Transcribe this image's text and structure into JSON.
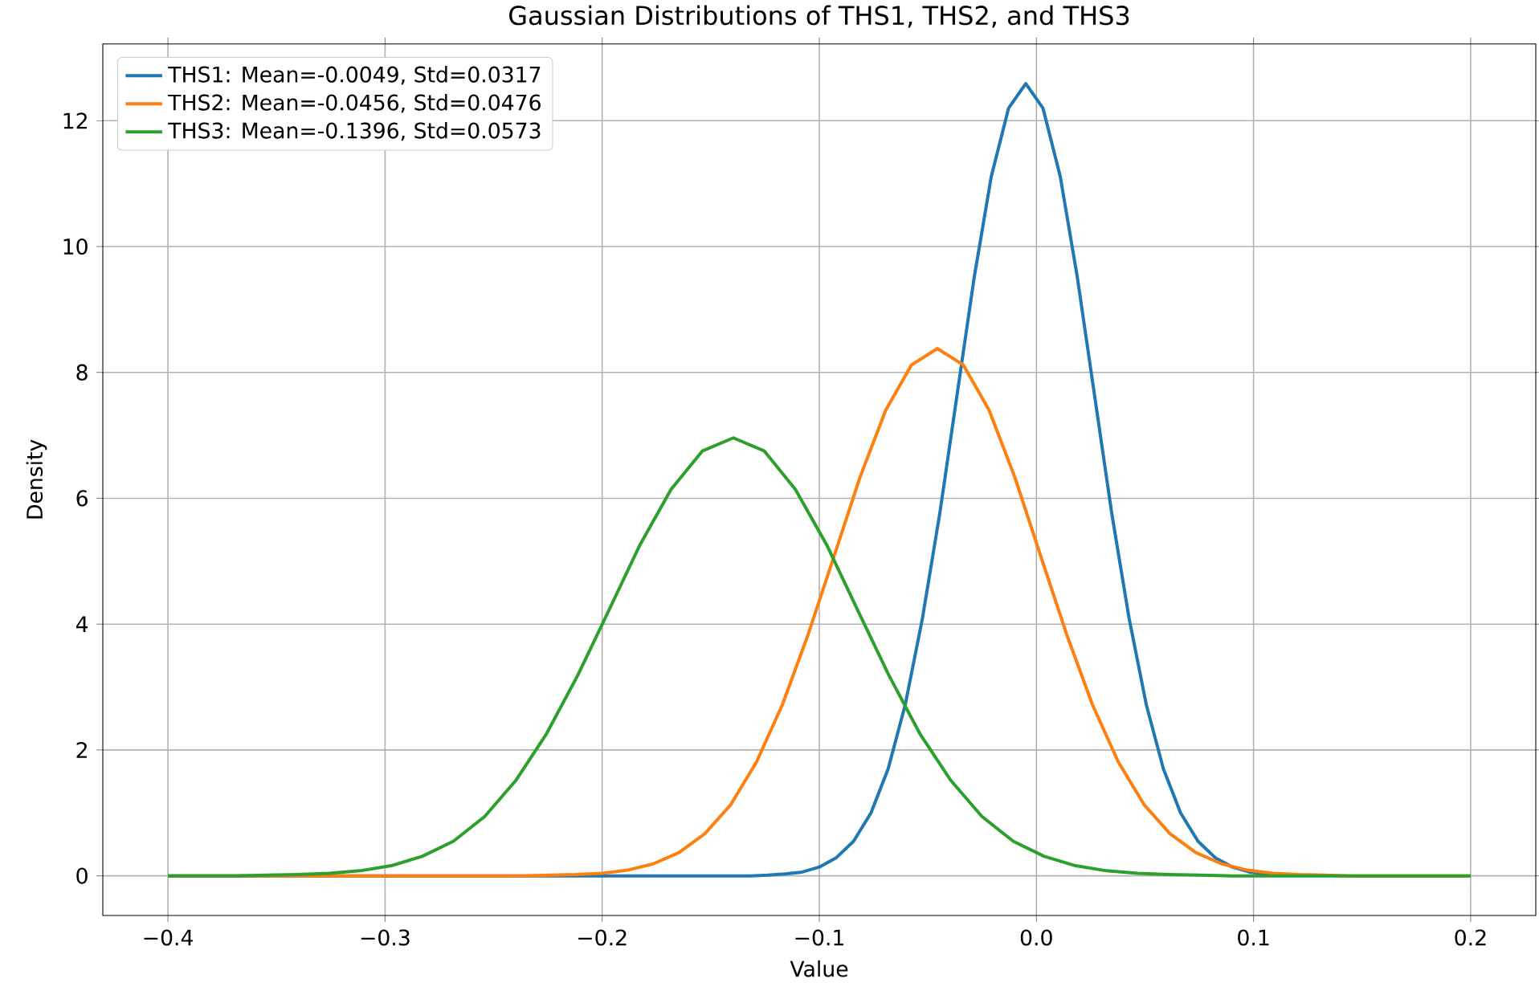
{
  "chart_data": {
    "type": "line",
    "title": "Gaussian Distributions of THS1, THS2, and THS3",
    "xlabel": "Value",
    "ylabel": "Density",
    "xlim": [
      -0.43,
      0.23
    ],
    "ylim": [
      -0.63,
      13.22
    ],
    "xticks": [
      {
        "value": -0.4,
        "label": "−0.4"
      },
      {
        "value": -0.3,
        "label": "−0.3"
      },
      {
        "value": -0.2,
        "label": "−0.2"
      },
      {
        "value": -0.1,
        "label": "−0.1"
      },
      {
        "value": 0,
        "label": "0.0"
      },
      {
        "value": 0.1,
        "label": "0.1"
      },
      {
        "value": 0.2,
        "label": "0.2"
      }
    ],
    "yticks": [
      0,
      2,
      4,
      6,
      8,
      10,
      12
    ],
    "grid": true,
    "legend": "top left",
    "marker": "none",
    "line_style": "solid",
    "series": [
      {
        "name": "THS1: Mean=-0.0049, Std=0.0317",
        "color": "#1f77b4",
        "x": [
          -0.4,
          -0.1317,
          -0.1238,
          -0.1159,
          -0.1079,
          -0.1,
          -0.0921,
          -0.0842,
          -0.0762,
          -0.0683,
          -0.0604,
          -0.0525,
          -0.0445,
          -0.0366,
          -0.0287,
          -0.0208,
          -0.0128,
          -0.0049,
          0.003,
          0.011,
          0.0189,
          0.0268,
          0.0347,
          0.0427,
          0.0506,
          0.0585,
          0.0664,
          0.0744,
          0.0823,
          0.0902,
          0.0981,
          0.1061,
          0.114
        ],
        "values": [
          0,
          0.0,
          0.01,
          0.03,
          0.06,
          0.14,
          0.29,
          0.55,
          1.0,
          1.7,
          2.72,
          4.09,
          5.76,
          7.63,
          9.5,
          11.11,
          12.2,
          12.59,
          12.2,
          11.11,
          9.5,
          7.63,
          5.76,
          4.09,
          2.72,
          1.7,
          1.0,
          0.55,
          0.29,
          0.14,
          0.06,
          0.03,
          0.01
        ]
      },
      {
        "name": "THS2: Mean=-0.0456, Std=0.0476",
        "color": "#ff7f0e",
        "x": [
          -0.4,
          -0.236,
          -0.2241,
          -0.2122,
          -0.2003,
          -0.1884,
          -0.1765,
          -0.1646,
          -0.1527,
          -0.1408,
          -0.1289,
          -0.117,
          -0.1051,
          -0.0932,
          -0.0813,
          -0.0694,
          -0.0575,
          -0.0456,
          -0.0337,
          -0.0218,
          -0.0099,
          0.002,
          0.0139,
          0.0258,
          0.0377,
          0.0496,
          0.0615,
          0.0734,
          0.0853,
          0.0972,
          0.1091,
          0.121,
          0.1329,
          0.1448,
          0.2
        ],
        "values": [
          0,
          0.0,
          0.01,
          0.02,
          0.04,
          0.09,
          0.19,
          0.37,
          0.67,
          1.13,
          1.81,
          2.72,
          3.84,
          5.08,
          6.33,
          7.4,
          8.12,
          8.38,
          8.12,
          7.4,
          6.33,
          5.08,
          3.84,
          2.72,
          1.81,
          1.13,
          0.67,
          0.37,
          0.19,
          0.09,
          0.04,
          0.02,
          0.01,
          0.0,
          0
        ]
      },
      {
        "name": "THS3: Mean=-0.1396, Std=0.0573",
        "color": "#2ca02c",
        "x": [
          -0.4,
          -0.3688,
          -0.3545,
          -0.3402,
          -0.3258,
          -0.3115,
          -0.2972,
          -0.2829,
          -0.2685,
          -0.2542,
          -0.2399,
          -0.2256,
          -0.2112,
          -0.1969,
          -0.1826,
          -0.1683,
          -0.1539,
          -0.1396,
          -0.1253,
          -0.111,
          -0.0966,
          -0.0823,
          -0.068,
          -0.0537,
          -0.0393,
          -0.025,
          -0.0107,
          0.0036,
          0.0181,
          0.0323,
          0.0466,
          0.061,
          0.0753,
          0.0896,
          0.2
        ],
        "values": [
          0,
          0.0,
          0.01,
          0.02,
          0.04,
          0.08,
          0.16,
          0.31,
          0.55,
          0.94,
          1.51,
          2.26,
          3.19,
          4.22,
          5.26,
          6.14,
          6.75,
          6.96,
          6.75,
          6.14,
          5.26,
          4.22,
          3.19,
          2.26,
          1.51,
          0.94,
          0.55,
          0.31,
          0.16,
          0.08,
          0.04,
          0.02,
          0.01,
          0.0,
          0
        ]
      }
    ]
  }
}
